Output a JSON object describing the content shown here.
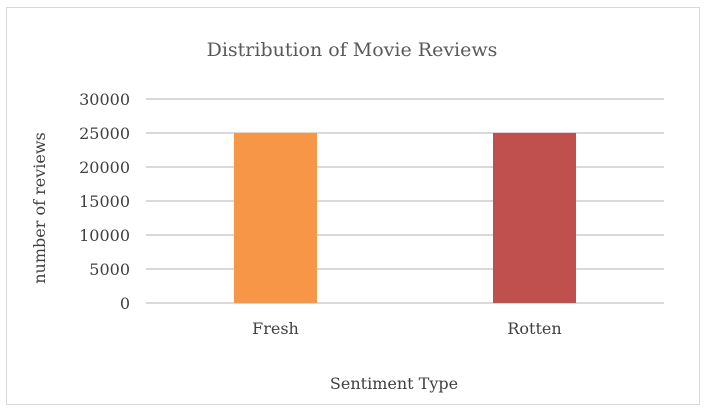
{
  "chart_data": {
    "type": "bar",
    "title": "Distribution of Movie Reviews",
    "xlabel": "Sentiment Type",
    "ylabel": "number of reviews",
    "categories": [
      "Fresh",
      "Rotten"
    ],
    "values": [
      25000,
      25000
    ],
    "colors": [
      "#f79646",
      "#c0504d"
    ],
    "ylim": [
      0,
      30000
    ],
    "yticks": [
      0,
      5000,
      10000,
      15000,
      20000,
      25000,
      30000
    ],
    "grid": true,
    "legend": "none"
  }
}
